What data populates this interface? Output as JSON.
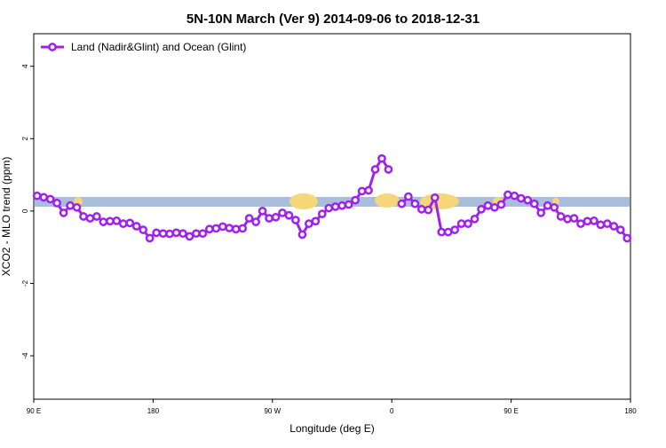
{
  "chart_data": {
    "type": "line",
    "title": "5N-10N March (Ver 9)   2014-09-06 to 2018-12-31",
    "x_label": "Longitude (deg E)",
    "y_label": "XCO2 - MLO trend (ppm)",
    "x": [
      92.5,
      97.5,
      102.5,
      107.5,
      112.5,
      117.5,
      122.5,
      127.5,
      132.5,
      137.5,
      142.5,
      147.5,
      152.5,
      157.5,
      162.5,
      167.5,
      172.5,
      177.5,
      182.5,
      187.5,
      192.5,
      197.5,
      202.5,
      207.5,
      212.5,
      217.5,
      222.5,
      227.5,
      232.5,
      237.5,
      242.5,
      247.5,
      252.5,
      257.5,
      262.5,
      267.5,
      272.5,
      277.5,
      282.5,
      287.5,
      292.5,
      297.5,
      302.5,
      307.5,
      312.5,
      317.5,
      322.5,
      327.5,
      332.5,
      337.5,
      342.5,
      347.5,
      352.5,
      357.5,
      362.5,
      367.5,
      372.5,
      377.5,
      382.5,
      387.5,
      392.5,
      397.5,
      402.5,
      407.5,
      412.5,
      417.5,
      422.5,
      427.5,
      432.5,
      437.5,
      442.5,
      447.5,
      452.5,
      457.5,
      462.5,
      467.5,
      472.5,
      477.5,
      482.5,
      487.5,
      492.5,
      497.5,
      502.5,
      507.5,
      512.5,
      517.5,
      522.5,
      527.5,
      532.5,
      537.5
    ],
    "series": [
      {
        "name": "Land (Nadir&Glint) and Ocean (Glint)",
        "color": "#a020f0",
        "values": [
          0.42,
          0.38,
          0.33,
          0.22,
          -0.05,
          0.15,
          0.1,
          -0.15,
          -0.2,
          -0.15,
          -0.3,
          -0.28,
          -0.27,
          -0.35,
          -0.33,
          -0.42,
          -0.52,
          -0.75,
          -0.6,
          -0.62,
          -0.63,
          -0.6,
          -0.62,
          -0.7,
          -0.62,
          -0.62,
          -0.5,
          -0.48,
          -0.43,
          -0.47,
          -0.5,
          -0.48,
          -0.2,
          -0.3,
          0,
          -0.2,
          -0.17,
          -0.05,
          -0.12,
          -0.25,
          -0.65,
          -0.35,
          -0.28,
          -0.08,
          0.08,
          0.12,
          0.15,
          0.18,
          0.3,
          0.55,
          0.57,
          1.15,
          1.45,
          1.15,
          null,
          0.2,
          0.4,
          0.2,
          0.05,
          0.03,
          0.37,
          -0.58,
          -0.58,
          -0.52,
          -0.35,
          -0.35,
          -0.22,
          0.05,
          0.15,
          0.1,
          0.18,
          0.45,
          0.42,
          0.35,
          0.3,
          0.2,
          -0.05,
          0.15,
          0.1,
          -0.15,
          -0.22,
          -0.2,
          -0.35,
          -0.28,
          -0.27,
          -0.38,
          -0.35,
          -0.42,
          -0.52,
          -0.75
        ]
      }
    ],
    "xlim": [
      90,
      540
    ],
    "xticks": [
      {
        "value": 90,
        "label": "90 E"
      },
      {
        "value": 180,
        "label": "180"
      },
      {
        "value": 270,
        "label": "90 W"
      },
      {
        "value": 360,
        "label": "0"
      },
      {
        "value": 450,
        "label": "90 E"
      },
      {
        "value": 540,
        "label": "180"
      }
    ],
    "ylim": [
      -5.2,
      4.9
    ],
    "yticks": [
      -4,
      -2,
      0,
      2,
      4
    ],
    "legend": "top-left"
  }
}
